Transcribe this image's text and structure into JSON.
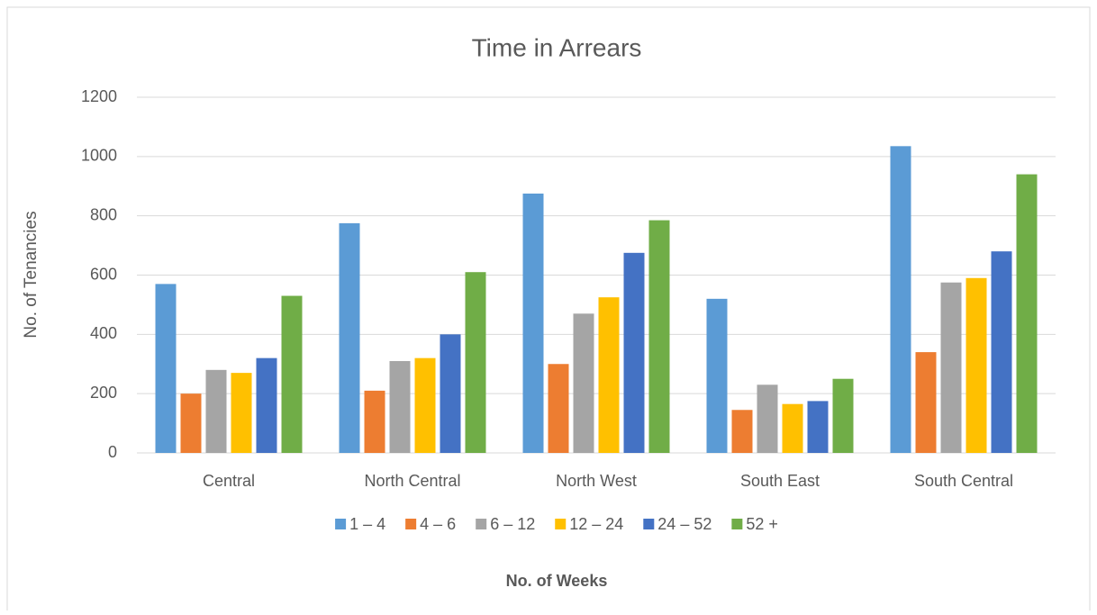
{
  "chart_data": {
    "type": "bar",
    "title": "Time in Arrears",
    "y_label": "No. of Tenancies",
    "x_label": "No. of Weeks",
    "categories": [
      "Central",
      "North Central",
      "North West",
      "South East",
      "South Central"
    ],
    "series": [
      {
        "name": "1 – 4",
        "color": "#5b9bd5",
        "values": [
          570,
          775,
          875,
          520,
          1035
        ]
      },
      {
        "name": "4 – 6",
        "color": "#ed7d31",
        "values": [
          200,
          210,
          300,
          145,
          340
        ]
      },
      {
        "name": "6 – 12",
        "color": "#a5a5a5",
        "values": [
          280,
          310,
          470,
          230,
          575
        ]
      },
      {
        "name": "12 – 24",
        "color": "#ffc000",
        "values": [
          270,
          320,
          525,
          165,
          590
        ]
      },
      {
        "name": "24 – 52",
        "color": "#4472c4",
        "values": [
          320,
          400,
          675,
          175,
          680
        ]
      },
      {
        "name": "52 +",
        "color": "#70ad47",
        "values": [
          530,
          610,
          785,
          250,
          940
        ]
      }
    ],
    "ylim": [
      0,
      1200
    ],
    "yticks": [
      0,
      200,
      400,
      600,
      800,
      1000,
      1200
    ],
    "grid": true,
    "legend": "bottom"
  }
}
